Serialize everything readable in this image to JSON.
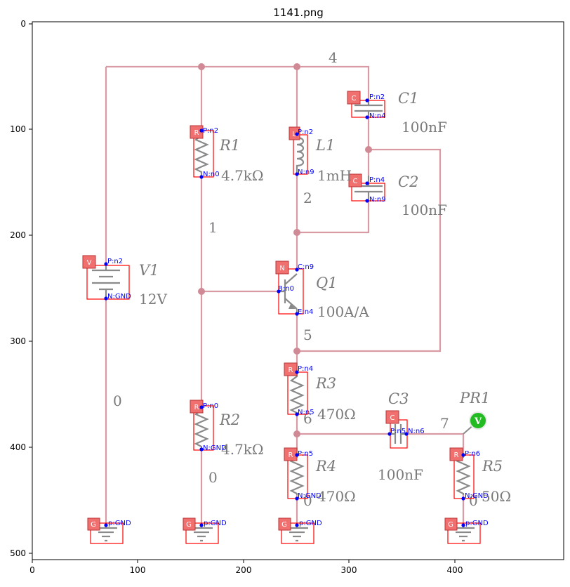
{
  "title": "1141.png",
  "axes": {
    "x_ticks": [
      "0",
      "100",
      "200",
      "300",
      "400"
    ],
    "y_ticks": [
      "0",
      "100",
      "200",
      "300",
      "400",
      "500"
    ],
    "x_range": [
      0,
      503
    ],
    "y_range": [
      508,
      0
    ]
  },
  "components": [
    {
      "id": "C1",
      "type": "capacitor",
      "tag": "C",
      "name": "C1",
      "value": "100nF",
      "pins": [
        "P:n2",
        "N:n4"
      ]
    },
    {
      "id": "C2",
      "type": "capacitor",
      "tag": "C",
      "name": "C2",
      "value": "100nF",
      "pins": [
        "P:n4",
        "N:n9"
      ]
    },
    {
      "id": "R1",
      "type": "resistor",
      "tag": "R",
      "name": "R1",
      "value": "4.7kΩ",
      "pins": [
        "P:n2",
        "N:n0"
      ]
    },
    {
      "id": "L1",
      "type": "inductor",
      "tag": "L",
      "name": "L1",
      "value": "1mH",
      "pins": [
        "P:n2",
        "N:n9"
      ]
    },
    {
      "id": "V1",
      "type": "battery",
      "tag": "V",
      "name": "V1",
      "value": "12V",
      "pins": [
        "P:n2",
        "N:GND"
      ]
    },
    {
      "id": "Q1",
      "type": "npn",
      "tag": "N",
      "name": "Q1",
      "value": "100A/A",
      "pins": [
        "C:n9",
        "B:n0",
        "E:n4"
      ]
    },
    {
      "id": "R3",
      "type": "resistor",
      "tag": "R",
      "name": "R3",
      "value": "470Ω",
      "pins": [
        "P:n4",
        "N:n5"
      ]
    },
    {
      "id": "R2",
      "type": "resistor",
      "tag": "R",
      "name": "R2",
      "value": "4.7kΩ",
      "pins": [
        "P:n0",
        "N:GND"
      ]
    },
    {
      "id": "C3",
      "type": "capacitor",
      "tag": "C",
      "name": "C3",
      "value": "100nF",
      "pins": [
        "P:n5",
        "N:n6"
      ]
    },
    {
      "id": "R4",
      "type": "resistor",
      "tag": "R",
      "name": "R4",
      "value": "470Ω",
      "pins": [
        "P:n5",
        "N:GND"
      ]
    },
    {
      "id": "R5",
      "type": "resistor",
      "tag": "R",
      "name": "R5",
      "value": "50Ω",
      "pins": [
        "P:n6",
        "N:GND"
      ]
    },
    {
      "id": "PR1",
      "type": "probe",
      "tag": "V",
      "name": "PR1",
      "value": "",
      "pins": []
    },
    {
      "id": "G1",
      "type": "ground",
      "tag": "G",
      "name": "",
      "value": "",
      "pins": [
        "p:GND"
      ]
    },
    {
      "id": "G2",
      "type": "ground",
      "tag": "G",
      "name": "",
      "value": "",
      "pins": [
        "p:GND"
      ]
    },
    {
      "id": "G3",
      "type": "ground",
      "tag": "G",
      "name": "",
      "value": "",
      "pins": [
        "p:GND"
      ]
    },
    {
      "id": "G4",
      "type": "ground",
      "tag": "G",
      "name": "",
      "value": "",
      "pins": [
        "p:GND"
      ]
    }
  ],
  "node_labels": [
    "4",
    "1",
    "2",
    "5",
    "6",
    "7",
    "0",
    "0",
    "0",
    "0"
  ]
}
